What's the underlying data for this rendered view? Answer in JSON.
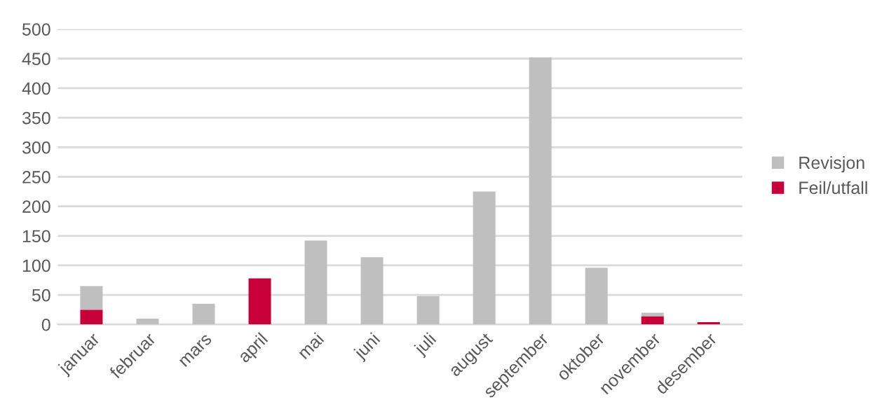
{
  "chart_data": {
    "type": "bar",
    "stacked": true,
    "categories": [
      "januar",
      "februar",
      "mars",
      "april",
      "mai",
      "juni",
      "juli",
      "august",
      "september",
      "oktober",
      "november",
      "desember"
    ],
    "series": [
      {
        "name": "Feil/utfall",
        "color": "#c8003a",
        "values": [
          25,
          0,
          0,
          78,
          0,
          0,
          0,
          0,
          0,
          0,
          14,
          4
        ]
      },
      {
        "name": "Revisjon",
        "color": "#bfbfbf",
        "values": [
          40,
          10,
          35,
          0,
          142,
          114,
          48,
          225,
          452,
          96,
          6,
          0
        ]
      }
    ],
    "ylim": [
      0,
      500
    ],
    "yticks": [
      0,
      50,
      100,
      150,
      200,
      250,
      300,
      350,
      400,
      450,
      500
    ],
    "grid": "y",
    "legend": "right"
  }
}
